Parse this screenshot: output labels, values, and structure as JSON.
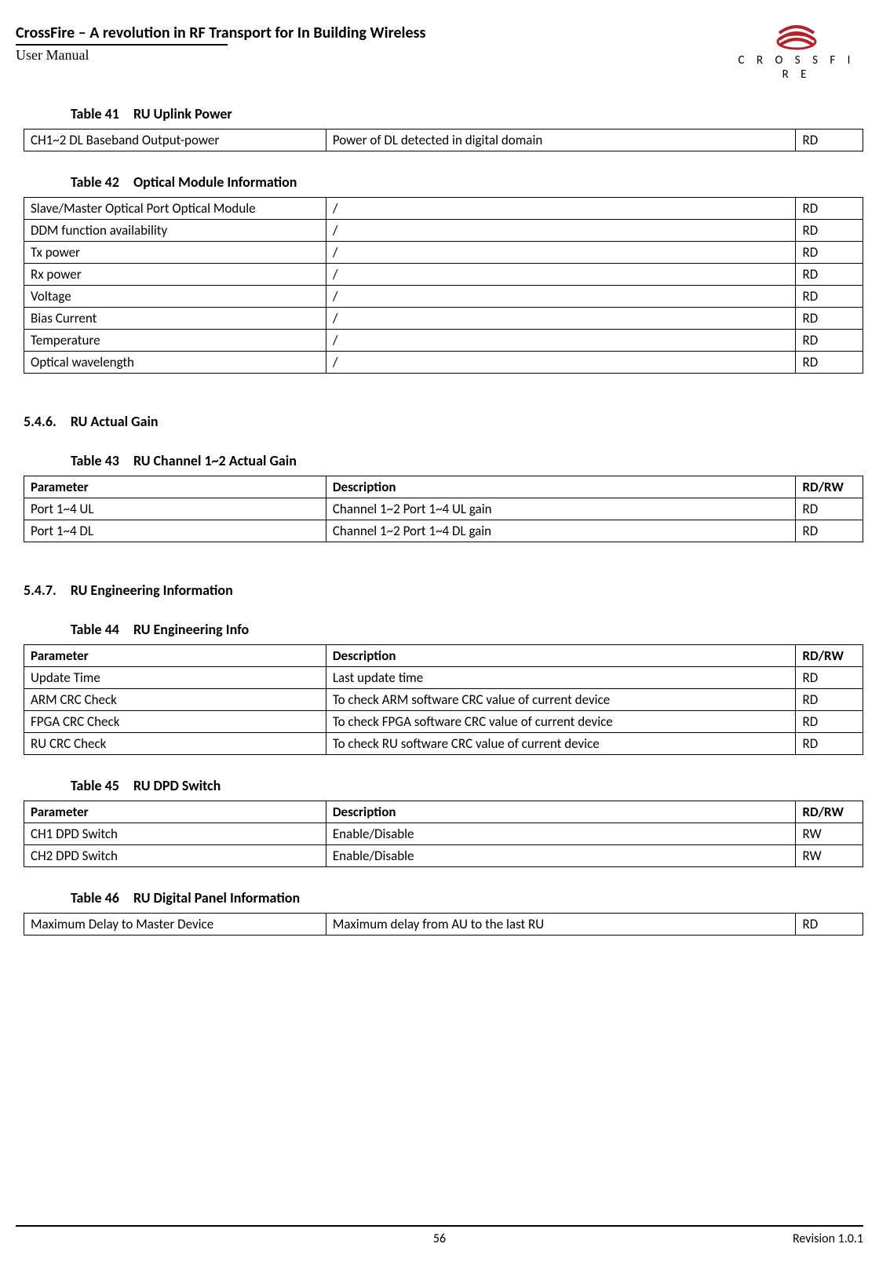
{
  "header": {
    "title": "CrossFire – A revolution in RF Transport for In Building Wireless",
    "subtitle": "User Manual",
    "logo_text": "C R O S S F I R E"
  },
  "footer": {
    "page_number": "56",
    "revision": "Revision 1.0.1"
  },
  "table41": {
    "caption_num": "Table 41",
    "caption_text": "RU Uplink Power",
    "rows": [
      [
        "CH1~2 DL Baseband Output-power",
        "Power of DL detected in digital domain",
        "RD"
      ]
    ]
  },
  "table42": {
    "caption_num": "Table 42",
    "caption_text": "Optical Module Information",
    "rows": [
      [
        "Slave/Master Optical Port Optical Module",
        "/",
        "RD"
      ],
      [
        "DDM function availability",
        "/",
        "RD"
      ],
      [
        "Tx power",
        "/",
        "RD"
      ],
      [
        "Rx power",
        "/",
        "RD"
      ],
      [
        "Voltage",
        "/",
        "RD"
      ],
      [
        "Bias Current",
        "/",
        "RD"
      ],
      [
        "Temperature",
        "/",
        "RD"
      ],
      [
        "Optical wavelength",
        "/",
        "RD"
      ]
    ]
  },
  "section546": {
    "num": "5.4.6.",
    "title": "RU Actual Gain"
  },
  "table43": {
    "caption_num": "Table 43",
    "caption_text": "RU Channel 1~2 Actual Gain",
    "headers": [
      "Parameter",
      "Description",
      "RD/RW"
    ],
    "rows": [
      [
        "Port 1~4 UL",
        "Channel 1~2 Port 1~4 UL gain",
        "RD"
      ],
      [
        "Port 1~4 DL",
        "Channel 1~2 Port 1~4 DL gain",
        "RD"
      ]
    ]
  },
  "section547": {
    "num": "5.4.7.",
    "title": "RU Engineering Information"
  },
  "table44": {
    "caption_num": "Table 44",
    "caption_text": "RU Engineering Info",
    "headers": [
      "Parameter",
      "Description",
      "RD/RW"
    ],
    "rows": [
      [
        "Update Time",
        "Last update time",
        "RD"
      ],
      [
        "ARM CRC Check",
        "To check ARM software CRC value of current device",
        "RD"
      ],
      [
        "FPGA CRC Check",
        "To check FPGA software CRC value of current device",
        "RD"
      ],
      [
        "RU CRC Check",
        "To check RU software CRC value of current device",
        "RD"
      ]
    ]
  },
  "table45": {
    "caption_num": "Table 45",
    "caption_text": "RU DPD Switch",
    "headers": [
      "Parameter",
      "Description",
      "RD/RW"
    ],
    "rows": [
      [
        "CH1 DPD Switch",
        "Enable/Disable",
        "RW"
      ],
      [
        "CH2 DPD Switch",
        "Enable/Disable",
        "RW"
      ]
    ]
  },
  "table46": {
    "caption_num": "Table 46",
    "caption_text": "RU Digital Panel Information",
    "rows": [
      [
        "Maximum Delay to Master Device",
        "Maximum delay from AU to the last RU",
        "RD"
      ]
    ]
  }
}
